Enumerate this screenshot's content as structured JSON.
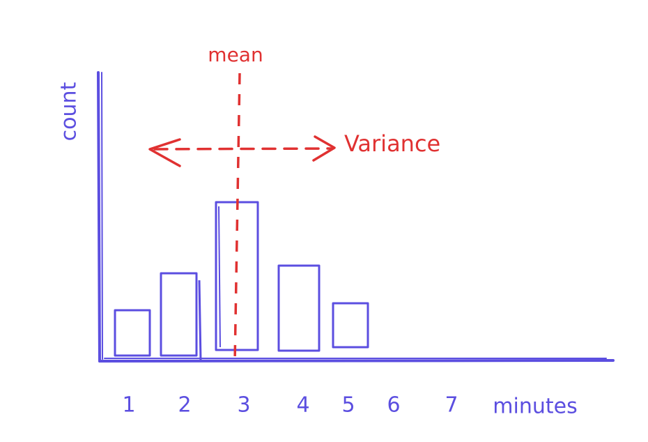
{
  "axes": {
    "y_label": "count",
    "x_label": "minutes",
    "x_ticks": [
      "1",
      "2",
      "3",
      "4",
      "5",
      "6",
      "7"
    ]
  },
  "annotations": {
    "mean": "mean",
    "variance": "Variance"
  }
}
